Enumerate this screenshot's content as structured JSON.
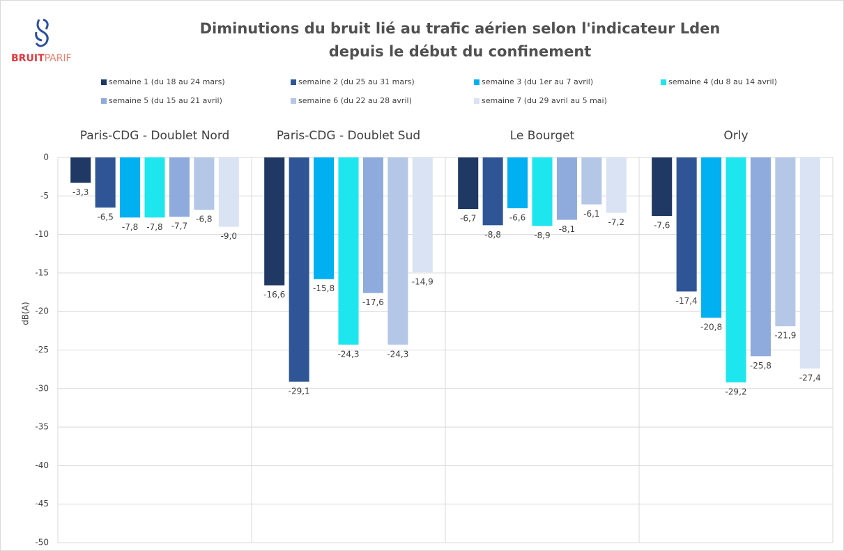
{
  "logo": [
    "BRUIT",
    "PARIF"
  ],
  "chart_data": {
    "type": "bar",
    "title": [
      "Diminutions du bruit lié au trafic aérien selon l'indicateur Lden",
      "depuis le début du confinement"
    ],
    "y_label": "dB(A)",
    "categories": [
      "Paris-CDG - Doublet Nord",
      "Paris-CDG - Doublet Sud",
      "Le Bourget",
      "Orly"
    ],
    "series": [
      {
        "name": "semaine 1 (du 18 au 24 mars)",
        "color": "#1f3864",
        "values": [
          -3.3,
          -16.6,
          -6.7,
          -7.6
        ],
        "value_labels": [
          "-3,3",
          "-16,6",
          "-6,7",
          "-7,6"
        ]
      },
      {
        "name": "semaine 2 (du 25 au 31 mars)",
        "color": "#2f5597",
        "values": [
          -6.5,
          -29.1,
          -8.8,
          -17.4
        ],
        "value_labels": [
          "-6,5",
          "-29,1",
          "-8,8",
          "-17,4"
        ]
      },
      {
        "name": "semaine 3 (du 1er au 7 avril)",
        "color": "#00b0f0",
        "values": [
          -7.8,
          -15.8,
          -6.6,
          -20.8
        ],
        "value_labels": [
          "-7,8",
          "-15,8",
          "-6,6",
          "-20,8"
        ]
      },
      {
        "name": "semaine 4 (du 8 au 14 avril)",
        "color": "#1ee6ee",
        "values": [
          -7.8,
          -24.3,
          -8.9,
          -29.2
        ],
        "value_labels": [
          "-7,8",
          "-24,3",
          "-8,9",
          "-29,2"
        ]
      },
      {
        "name": "semaine 5 (du 15 au 21 avril)",
        "color": "#8faadc",
        "values": [
          -7.7,
          -17.6,
          -8.1,
          -25.8
        ],
        "value_labels": [
          "-7,7",
          "-17,6",
          "-8,1",
          "-25,8"
        ]
      },
      {
        "name": "semaine 6 (du 22 au 28 avril)",
        "color": "#b4c7e7",
        "values": [
          -6.8,
          -24.3,
          -6.1,
          -21.9
        ],
        "value_labels": [
          "-6,8",
          "-24,3",
          "-6,1",
          "-21,9"
        ]
      },
      {
        "name": "semaine 7 (du 29 avril au 5 mai)",
        "color": "#dae3f3",
        "values": [
          -9.0,
          -14.9,
          -7.2,
          -27.4
        ],
        "value_labels": [
          "-9,0",
          "-14,9",
          "-7,2",
          "-27,4"
        ]
      }
    ],
    "ylim": [
      -50,
      0
    ],
    "yticks": [
      0,
      -5,
      -10,
      -15,
      -20,
      -25,
      -30,
      -35,
      -40,
      -45,
      -50
    ],
    "grid": true,
    "legend": "top"
  }
}
